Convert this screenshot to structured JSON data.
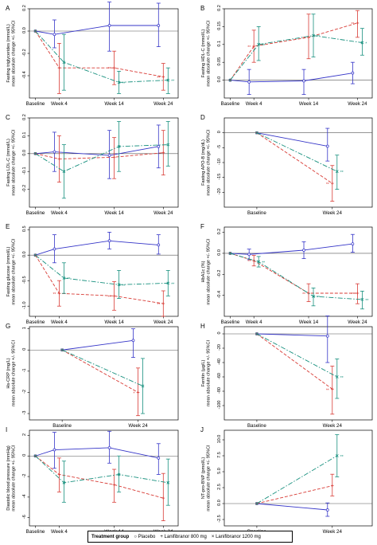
{
  "colors": {
    "placebo": "#3535c8",
    "lani800": "#d83b35",
    "lani1200": "#17907e"
  },
  "chart_data": [
    {
      "type": "line",
      "letter": "A",
      "ylabel_lines": [
        "Fasting triglycerides (mmol/L)",
        "mean absolute change +/- 95%CI"
      ],
      "x": [
        "Baseline",
        "Week 4",
        "Week 14",
        "Week 24"
      ],
      "ylim": [
        -0.6,
        0.2
      ],
      "yticks": [
        0.2,
        0.0,
        -0.2,
        -0.4
      ],
      "series": [
        {
          "name": "Placebo",
          "values": [
            0,
            -0.03,
            0.05,
            0.05
          ],
          "ci": [
            [
              0,
              0
            ],
            [
              -0.15,
              0.1
            ],
            [
              -0.18,
              0.26
            ],
            [
              -0.14,
              0.25
            ]
          ],
          "sig": []
        },
        {
          "name": "Lanifibranor 800 mg",
          "values": [
            0,
            -0.33,
            -0.33,
            -0.41
          ],
          "ci": [
            [
              0,
              0
            ],
            [
              -0.56,
              -0.11
            ],
            [
              -0.48,
              -0.18
            ],
            [
              -0.53,
              -0.29
            ]
          ],
          "sig": [
            "",
            "",
            "**",
            "**"
          ]
        },
        {
          "name": "Lanifibranor 1200 mg",
          "values": [
            0,
            -0.28,
            -0.46,
            -0.44
          ],
          "ci": [
            [
              0,
              0
            ],
            [
              -0.53,
              -0.03
            ],
            [
              -0.56,
              -0.36
            ],
            [
              -0.56,
              -0.33
            ]
          ],
          "sig": [
            "",
            "",
            "**",
            "**"
          ]
        }
      ]
    },
    {
      "type": "line",
      "letter": "B",
      "ylabel_lines": [
        "Fasting HDL-C (mmol/L)",
        "mean absolute change +/- 95%CI"
      ],
      "x": [
        "Baseline",
        "Week 4",
        "Week 14",
        "Week 24"
      ],
      "ylim": [
        -0.05,
        0.2
      ],
      "yticks": [
        0.2,
        0.15,
        0.1,
        0.05,
        0.0
      ],
      "series": [
        {
          "name": "Placebo",
          "values": [
            0,
            -0.005,
            -0.002,
            0.02
          ],
          "ci": [
            [
              0,
              0
            ],
            [
              -0.04,
              0.03
            ],
            [
              -0.04,
              0.03
            ],
            [
              -0.01,
              0.05
            ]
          ],
          "sig": []
        },
        {
          "name": "Lanifibranor 800 mg",
          "values": [
            0,
            0.095,
            0.12,
            0.16
          ],
          "ci": [
            [
              0,
              0
            ],
            [
              0.05,
              0.14
            ],
            [
              0.06,
              0.185
            ],
            [
              0.12,
              0.195
            ]
          ],
          "sig": [
            "",
            "**",
            "**",
            "**"
          ]
        },
        {
          "name": "Lanifibranor 1200 mg",
          "values": [
            0,
            0.1,
            0.125,
            0.105
          ],
          "ci": [
            [
              0,
              0
            ],
            [
              0.055,
              0.15
            ],
            [
              0.065,
              0.185
            ],
            [
              0.07,
              0.145
            ]
          ],
          "sig": [
            "",
            "**",
            "**",
            "*"
          ]
        }
      ]
    },
    {
      "type": "line",
      "letter": "C",
      "ylabel_lines": [
        "Fasting LDL-C (mmol/L)",
        "mean absolute change +/- 95%CI"
      ],
      "x": [
        "Baseline",
        "Week 4",
        "Week 14",
        "Week 24"
      ],
      "ylim": [
        -0.3,
        0.2
      ],
      "yticks": [
        0.2,
        0.1,
        0.0,
        -0.1,
        -0.2
      ],
      "series": [
        {
          "name": "Placebo",
          "values": [
            0,
            0.01,
            -0.01,
            0.04
          ],
          "ci": [
            [
              0,
              0
            ],
            [
              -0.1,
              0.12
            ],
            [
              -0.14,
              0.13
            ],
            [
              -0.08,
              0.16
            ]
          ],
          "sig": []
        },
        {
          "name": "Lanifibranor 800 mg",
          "values": [
            0,
            -0.03,
            -0.02,
            0.005
          ],
          "ci": [
            [
              0,
              0
            ],
            [
              -0.16,
              0.1
            ],
            [
              -0.14,
              0.09
            ],
            [
              -0.12,
              0.13
            ]
          ],
          "sig": []
        },
        {
          "name": "Lanifibranor 1200 mg",
          "values": [
            0,
            -0.1,
            0.04,
            0.05
          ],
          "ci": [
            [
              0,
              0
            ],
            [
              -0.25,
              0.05
            ],
            [
              -0.1,
              0.18
            ],
            [
              -0.07,
              0.18
            ]
          ],
          "sig": []
        }
      ]
    },
    {
      "type": "line",
      "letter": "D",
      "ylabel_lines": [
        "Fasting APO-B (mg/dL)",
        "mean absolute change +/- 95%CI"
      ],
      "x": [
        "Baseline",
        "Week 24"
      ],
      "ylim": [
        -25,
        5
      ],
      "yticks": [
        0,
        -5,
        -10,
        -15,
        -20
      ],
      "series": [
        {
          "name": "Placebo",
          "values": [
            0,
            -4.5
          ],
          "ci": [
            [
              0,
              0
            ],
            [
              -9.5,
              1.5
            ]
          ],
          "sig": []
        },
        {
          "name": "Lanifibranor 800 mg",
          "values": [
            0,
            -17
          ],
          "ci": [
            [
              0,
              0
            ],
            [
              -23,
              -11
            ]
          ],
          "sig": [
            "",
            "**"
          ]
        },
        {
          "name": "Lanifibranor 1200 mg",
          "values": [
            0,
            -13
          ],
          "ci": [
            [
              0,
              0
            ],
            [
              -19,
              -7.5
            ]
          ],
          "sig": [
            "",
            "**"
          ]
        }
      ]
    },
    {
      "type": "line",
      "letter": "E",
      "ylabel_lines": [
        "Fasting glucose (mmol/L)",
        "mean absolute change +/- 95%CI"
      ],
      "x": [
        "Baseline",
        "Week 4",
        "Week 14",
        "Week 24"
      ],
      "ylim": [
        -1.2,
        0.55
      ],
      "yticks": [
        0.5,
        0.0,
        -0.5,
        -1.0
      ],
      "series": [
        {
          "name": "Placebo",
          "values": [
            0,
            0.12,
            0.28,
            0.2
          ],
          "ci": [
            [
              0,
              0
            ],
            [
              -0.15,
              0.4
            ],
            [
              0.12,
              0.45
            ],
            [
              0.02,
              0.4
            ]
          ],
          "sig": []
        },
        {
          "name": "Lanifibranor 800 mg",
          "values": [
            0,
            -0.75,
            -0.8,
            -0.95
          ],
          "ci": [
            [
              0,
              0
            ],
            [
              -1.0,
              -0.5
            ],
            [
              -1.08,
              -0.52
            ],
            [
              -1.2,
              -0.7
            ]
          ],
          "sig": [
            "",
            "**",
            "**",
            "**"
          ]
        },
        {
          "name": "Lanifibranor 1200 mg",
          "values": [
            0,
            -0.45,
            -0.58,
            -0.55
          ],
          "ci": [
            [
              0,
              0
            ],
            [
              -0.75,
              -0.15
            ],
            [
              -0.85,
              -0.3
            ],
            [
              -0.8,
              -0.3
            ]
          ],
          "sig": [
            "",
            "**",
            "**",
            "**"
          ]
        }
      ]
    },
    {
      "type": "line",
      "letter": "F",
      "ylabel_lines": [
        "HbA1c (%)",
        "mean absolute change +/- 95%CI"
      ],
      "x": [
        "Baseline",
        "Week 4",
        "Week 14",
        "Week 24"
      ],
      "ylim": [
        -0.6,
        0.25
      ],
      "yticks": [
        0.2,
        0.0,
        -0.2,
        -0.4
      ],
      "series": [
        {
          "name": "Placebo",
          "values": [
            0,
            -0.01,
            0.03,
            0.09
          ],
          "ci": [
            [
              0,
              0
            ],
            [
              -0.06,
              0.04
            ],
            [
              -0.05,
              0.11
            ],
            [
              0.01,
              0.18
            ]
          ],
          "sig": []
        },
        {
          "name": "Lanifibranor 800 mg",
          "values": [
            0,
            -0.07,
            -0.38,
            -0.38
          ],
          "ci": [
            [
              0,
              0
            ],
            [
              -0.12,
              -0.02
            ],
            [
              -0.46,
              -0.29
            ],
            [
              -0.48,
              -0.29
            ]
          ],
          "sig": [
            "",
            "**",
            "**",
            "**"
          ]
        },
        {
          "name": "Lanifibranor 1200 mg",
          "values": [
            0,
            -0.08,
            -0.41,
            -0.44
          ],
          "ci": [
            [
              0,
              0
            ],
            [
              -0.13,
              -0.03
            ],
            [
              -0.5,
              -0.33
            ],
            [
              -0.53,
              -0.36
            ]
          ],
          "sig": [
            "",
            "**",
            "**",
            "**"
          ]
        }
      ]
    },
    {
      "type": "line",
      "letter": "G",
      "ylabel_lines": [
        "Hs-CRP (mg/L)",
        "mean absolute change +/- 95%CI"
      ],
      "x": [
        "Baseline",
        "Week 24"
      ],
      "ylim": [
        -3.3,
        1.1
      ],
      "yticks": [
        1,
        0,
        -1,
        -2,
        -3
      ],
      "series": [
        {
          "name": "Placebo",
          "values": [
            0,
            0.45
          ],
          "ci": [
            [
              0,
              0
            ],
            [
              -0.35,
              1.0
            ]
          ],
          "sig": []
        },
        {
          "name": "Lanifibranor 800 mg",
          "values": [
            0,
            -2.0
          ],
          "ci": [
            [
              0,
              0
            ],
            [
              -3.1,
              -0.85
            ]
          ],
          "sig": [
            "",
            "*"
          ]
        },
        {
          "name": "Lanifibranor 1200 mg",
          "values": [
            0,
            -1.7
          ],
          "ci": [
            [
              0,
              0
            ],
            [
              -3.0,
              -0.4
            ]
          ],
          "sig": []
        }
      ]
    },
    {
      "type": "line",
      "letter": "H",
      "ylabel_lines": [
        "Ferritin (µg/L)",
        "mean absolute change +/- 95%CI"
      ],
      "x": [
        "Baseline",
        "Week 24"
      ],
      "ylim": [
        -120,
        10
      ],
      "yticks": [
        0,
        -20,
        -40,
        -60,
        -80,
        -100
      ],
      "series": [
        {
          "name": "Placebo",
          "values": [
            0,
            -3
          ],
          "ci": [
            [
              0,
              0
            ],
            [
              -40,
              25
            ]
          ],
          "sig": []
        },
        {
          "name": "Lanifibranor 800 mg",
          "values": [
            0,
            -77
          ],
          "ci": [
            [
              0,
              0
            ],
            [
              -112,
              -45
            ]
          ],
          "sig": [
            "",
            "**"
          ]
        },
        {
          "name": "Lanifibranor 1200 mg",
          "values": [
            0,
            -60
          ],
          "ci": [
            [
              0,
              0
            ],
            [
              -90,
              -35
            ]
          ],
          "sig": [
            "",
            "**"
          ]
        }
      ]
    },
    {
      "type": "line",
      "letter": "I",
      "ylabel_lines": [
        "Diastolic blood pressure (mmHg)",
        "mean absolute change +/- 95%CI"
      ],
      "x": [
        "Baseline",
        "Week 4",
        "Week 14",
        "Week 24"
      ],
      "ylim": [
        -6.8,
        2.5
      ],
      "yticks": [
        2,
        0,
        -2,
        -4,
        -6
      ],
      "series": [
        {
          "name": "Placebo",
          "values": [
            0,
            0.6,
            0.8,
            -0.2
          ],
          "ci": [
            [
              0,
              0
            ],
            [
              -1.2,
              2.3
            ],
            [
              -0.7,
              2.4
            ],
            [
              -1.8,
              1.2
            ]
          ],
          "sig": []
        },
        {
          "name": "Lanifibranor 800 mg",
          "values": [
            0,
            -1.8,
            -2.8,
            -4.1
          ],
          "ci": [
            [
              0,
              0
            ],
            [
              -3.5,
              -0.2
            ],
            [
              -4.5,
              -1.3
            ],
            [
              -6.3,
              -1.7
            ]
          ],
          "sig": []
        },
        {
          "name": "Lanifibranor 1200 mg",
          "values": [
            0,
            -2.6,
            -1.8,
            -2.6
          ],
          "ci": [
            [
              0,
              0
            ],
            [
              -4.5,
              -0.5
            ],
            [
              -3.5,
              0.0
            ],
            [
              -4.8,
              -0.3
            ]
          ],
          "sig": []
        }
      ]
    },
    {
      "type": "line",
      "letter": "J",
      "ylabel_lines": [
        "NT-pro-BNP (pmol/L)",
        "mean absolute change +/- 95%CI"
      ],
      "x": [
        "Baseline",
        "Week 24"
      ],
      "ylim": [
        -3.5,
        11.5
      ],
      "yticks": [
        10.0,
        7.5,
        5.0,
        2.5,
        0.0,
        -2.5
      ],
      "series": [
        {
          "name": "Placebo",
          "values": [
            0,
            -1.0
          ],
          "ci": [
            [
              0,
              0
            ],
            [
              -2.0,
              0.1
            ]
          ],
          "sig": []
        },
        {
          "name": "Lanifibranor 800 mg",
          "values": [
            0,
            2.8
          ],
          "ci": [
            [
              0,
              0
            ],
            [
              1.2,
              4.6
            ]
          ],
          "sig": []
        },
        {
          "name": "Lanifibranor 1200 mg",
          "values": [
            0,
            7.5
          ],
          "ci": [
            [
              0,
              0
            ],
            [
              4.2,
              10.8
            ]
          ],
          "sig": [
            "",
            "**"
          ]
        }
      ]
    }
  ],
  "legend": {
    "title": "Treatment group",
    "items": [
      {
        "marker": "○",
        "label": "Placebo"
      },
      {
        "marker": "+",
        "label": "Lanifibranor 800 mg"
      },
      {
        "marker": "×",
        "label": "Lanifibranor 1200 mg"
      }
    ]
  }
}
